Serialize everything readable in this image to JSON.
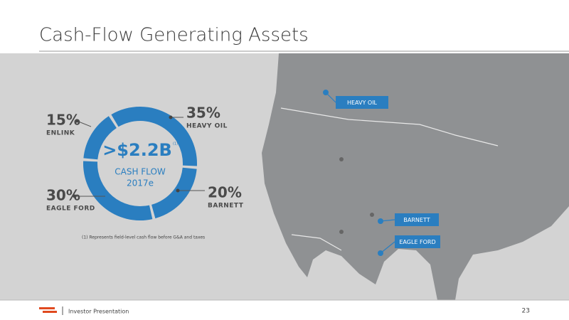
{
  "title": "Cash-Flow Generating Assets",
  "chart_data": {
    "type": "pie",
    "categories": [
      "HEAVY OIL",
      "BARNETT",
      "EAGLE FORD",
      "ENLINK"
    ],
    "values": [
      35,
      20,
      30,
      15
    ],
    "value_labels": [
      "35%",
      "20%",
      "30%",
      "15%"
    ],
    "color": "#2a7ec0",
    "center_value": ">$2.2B",
    "center_note": "(1)",
    "center_label": "CASH FLOW",
    "center_sublabel": "2017e",
    "footnote": "(1) Represents field-level cash flow before G&A and taxes"
  },
  "map_labels": [
    "HEAVY OIL",
    "BARNETT",
    "EAGLE FORD"
  ],
  "footer": {
    "text": "Investor Presentation",
    "page": "23"
  }
}
